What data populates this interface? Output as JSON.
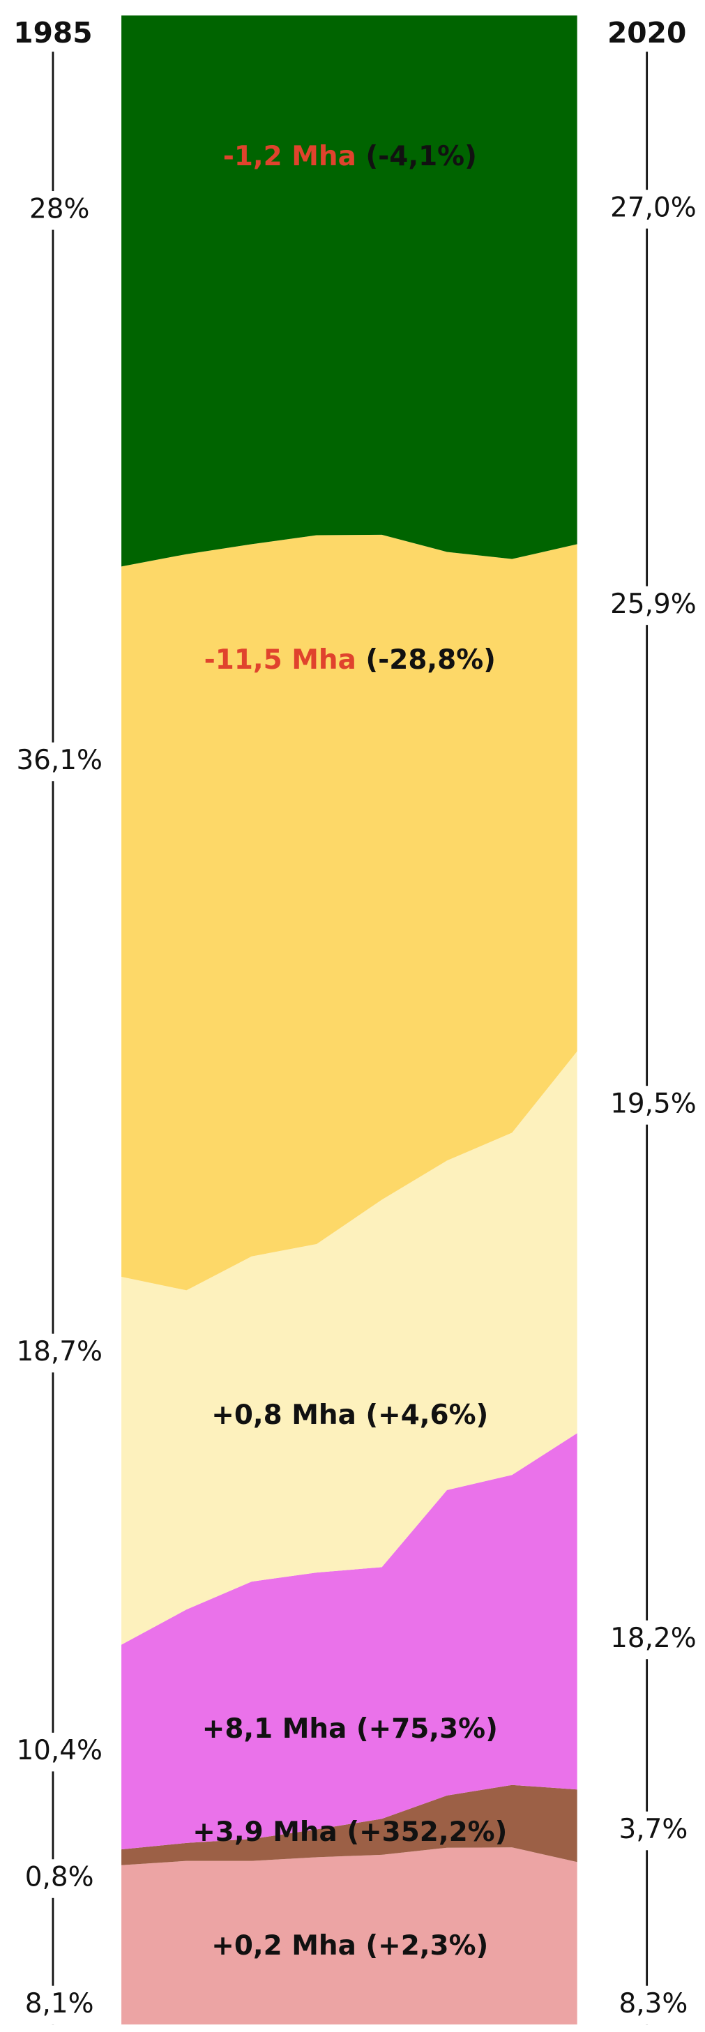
{
  "chart_data": {
    "type": "area",
    "stack": "percent",
    "x": [
      1985,
      1990,
      1995,
      2000,
      2005,
      2010,
      2015,
      2020
    ],
    "xlim": [
      1985,
      2020
    ],
    "xticks": [
      1985,
      2020
    ],
    "series": [
      {
        "color": "#eca4a4",
        "values": [
          8.1,
          8.2,
          8.2,
          8.4,
          8.5,
          8.8,
          8.8,
          8.3
        ],
        "value_labels": [
          "8,1%",
          null,
          null,
          null,
          null,
          null,
          null,
          "8,3%"
        ],
        "change": [
          "+0,2 Mha (+2,3%)"
        ]
      },
      {
        "color": "#9c6046",
        "values": [
          0.8,
          0.9,
          1.1,
          1.4,
          1.8,
          2.6,
          3.1,
          3.7
        ],
        "value_labels": [
          "0,8%",
          null,
          null,
          null,
          null,
          null,
          null,
          "3,7%"
        ],
        "change": [
          "+3,9 Mha (+352,2%)"
        ]
      },
      {
        "color": "#ea72ea",
        "values": [
          10.4,
          11.7,
          12.9,
          12.9,
          12.6,
          15.2,
          15.4,
          18.2
        ],
        "value_labels": [
          "10,4%",
          null,
          null,
          null,
          null,
          null,
          null,
          "18,2%"
        ],
        "change": [
          "+8,1 Mha (+75,3%)"
        ]
      },
      {
        "color": "#fdf1bd",
        "values": [
          18.7,
          16.0,
          16.3,
          16.5,
          18.4,
          16.4,
          17.0,
          19.5
        ],
        "value_labels": [
          "18,7%",
          null,
          null,
          null,
          null,
          null,
          null,
          "19,5%"
        ],
        "change": [
          "+0,8 Mha (+4,6%)"
        ]
      },
      {
        "color": "#fdd868",
        "values": [
          36.1,
          36.9,
          35.7,
          35.6,
          33.3,
          30.3,
          28.5,
          25.9
        ],
        "value_labels": [
          "36,1%",
          null,
          null,
          null,
          null,
          null,
          null,
          "25,9%"
        ],
        "change": [
          "-11,5 Mha",
          "(-28,8%)"
        ],
        "change_color": "#e0432d"
      },
      {
        "color": "#006400",
        "values": [
          28,
          27.0,
          26.5,
          26.1,
          26.0,
          26.7,
          27.0,
          27.0
        ],
        "value_labels": [
          "28%",
          null,
          null,
          null,
          null,
          null,
          null,
          "27,0%"
        ],
        "change": [
          "-1,2 Mha",
          "(-4,1%)"
        ],
        "change_color": "#e0432d"
      }
    ]
  }
}
